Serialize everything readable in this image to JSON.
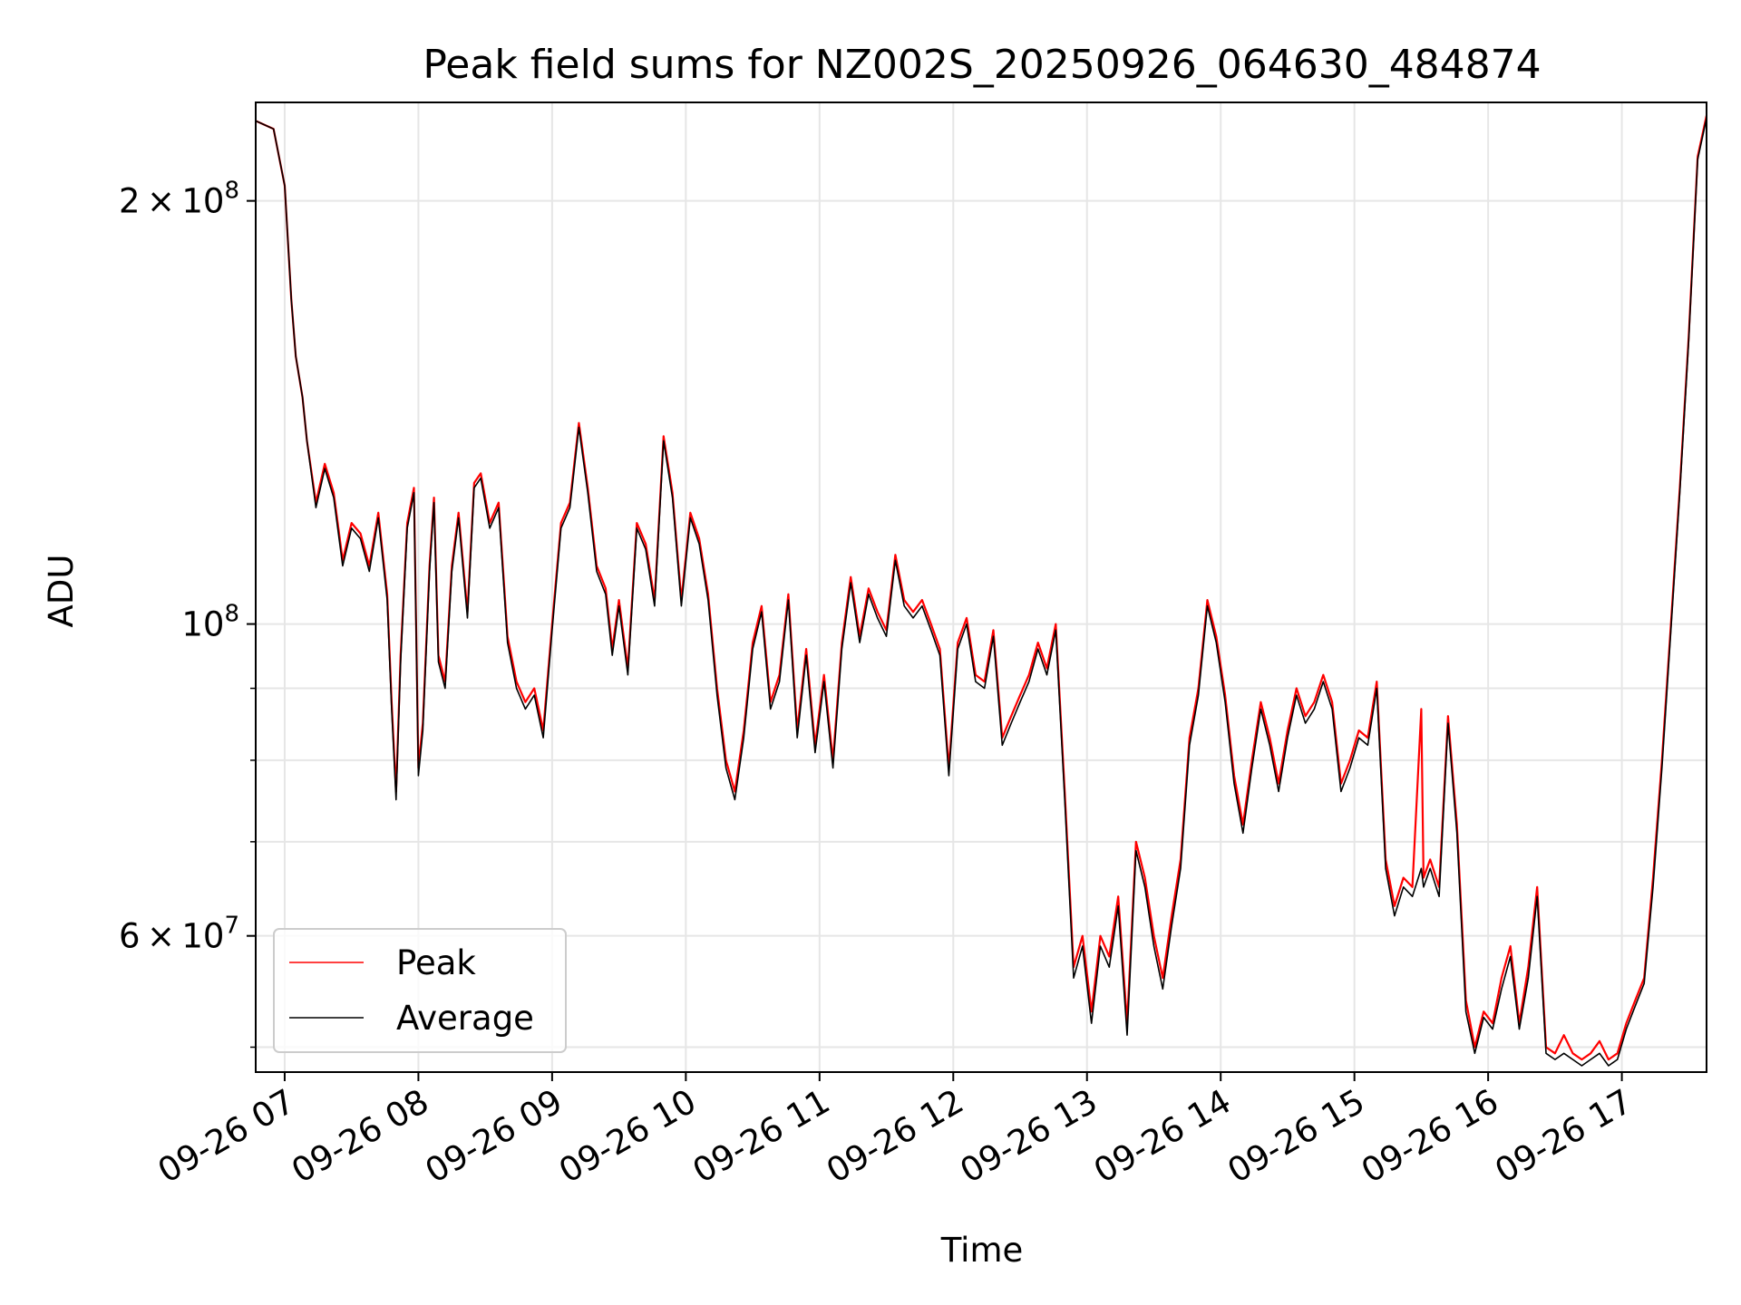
{
  "chart_data": {
    "type": "line",
    "title": "Peak field sums for NZ002S_20250926_064630_484874",
    "xlabel": "Time",
    "ylabel": "ADU",
    "yscale": "log",
    "grid": true,
    "legend_position": "lower-left",
    "xlim": [
      "2025-09-26 06:47",
      "2025-09-26 17:38"
    ],
    "ylim": [
      48000000,
      235000000
    ],
    "x_tick_labels": [
      "09-26 07",
      "09-26 08",
      "09-26 09",
      "09-26 10",
      "09-26 11",
      "09-26 12",
      "09-26 13",
      "09-26 14",
      "09-26 15",
      "09-26 16",
      "09-26 17"
    ],
    "x_ticks": [
      "2025-09-26 07:00",
      "2025-09-26 08:00",
      "2025-09-26 09:00",
      "2025-09-26 10:00",
      "2025-09-26 11:00",
      "2025-09-26 12:00",
      "2025-09-26 13:00",
      "2025-09-26 14:00",
      "2025-09-26 15:00",
      "2025-09-26 16:00",
      "2025-09-26 17:00"
    ],
    "y_major_ticks": [
      {
        "value": 100000000,
        "mantissa": "",
        "exponent": "8"
      },
      {
        "value": 200000000,
        "mantissa": "2",
        "exponent": "8"
      },
      {
        "value": 60000000,
        "mantissa": "6",
        "exponent": "7"
      }
    ],
    "y_minor_gridlines": [
      50000000,
      70000000,
      80000000,
      90000000
    ],
    "colors": {
      "peak": "#ff0000",
      "average": "#000000"
    },
    "series": [
      {
        "name": "Peak",
        "color": "#ff0000",
        "x": [
          "2025-09-26 06:47",
          "2025-09-26 06:55",
          "2025-09-26 07:00",
          "2025-09-26 07:03",
          "2025-09-26 07:05",
          "2025-09-26 07:08",
          "2025-09-26 07:10",
          "2025-09-26 07:14",
          "2025-09-26 07:18",
          "2025-09-26 07:22",
          "2025-09-26 07:26",
          "2025-09-26 07:30",
          "2025-09-26 07:34",
          "2025-09-26 07:38",
          "2025-09-26 07:42",
          "2025-09-26 07:46",
          "2025-09-26 07:48",
          "2025-09-26 07:50",
          "2025-09-26 07:52",
          "2025-09-26 07:55",
          "2025-09-26 07:58",
          "2025-09-26 08:00",
          "2025-09-26 08:02",
          "2025-09-26 08:05",
          "2025-09-26 08:07",
          "2025-09-26 08:09",
          "2025-09-26 08:12",
          "2025-09-26 08:15",
          "2025-09-26 08:18",
          "2025-09-26 08:22",
          "2025-09-26 08:25",
          "2025-09-26 08:28",
          "2025-09-26 08:32",
          "2025-09-26 08:36",
          "2025-09-26 08:40",
          "2025-09-26 08:44",
          "2025-09-26 08:48",
          "2025-09-26 08:52",
          "2025-09-26 08:56",
          "2025-09-26 09:00",
          "2025-09-26 09:04",
          "2025-09-26 09:08",
          "2025-09-26 09:12",
          "2025-09-26 09:16",
          "2025-09-26 09:20",
          "2025-09-26 09:24",
          "2025-09-26 09:27",
          "2025-09-26 09:30",
          "2025-09-26 09:34",
          "2025-09-26 09:38",
          "2025-09-26 09:42",
          "2025-09-26 09:46",
          "2025-09-26 09:50",
          "2025-09-26 09:54",
          "2025-09-26 09:58",
          "2025-09-26 10:02",
          "2025-09-26 10:06",
          "2025-09-26 10:10",
          "2025-09-26 10:14",
          "2025-09-26 10:18",
          "2025-09-26 10:22",
          "2025-09-26 10:26",
          "2025-09-26 10:30",
          "2025-09-26 10:34",
          "2025-09-26 10:38",
          "2025-09-26 10:42",
          "2025-09-26 10:46",
          "2025-09-26 10:50",
          "2025-09-26 10:54",
          "2025-09-26 10:58",
          "2025-09-26 11:02",
          "2025-09-26 11:06",
          "2025-09-26 11:10",
          "2025-09-26 11:14",
          "2025-09-26 11:18",
          "2025-09-26 11:22",
          "2025-09-26 11:26",
          "2025-09-26 11:30",
          "2025-09-26 11:34",
          "2025-09-26 11:38",
          "2025-09-26 11:42",
          "2025-09-26 11:46",
          "2025-09-26 11:50",
          "2025-09-26 11:54",
          "2025-09-26 11:58",
          "2025-09-26 12:02",
          "2025-09-26 12:06",
          "2025-09-26 12:10",
          "2025-09-26 12:14",
          "2025-09-26 12:18",
          "2025-09-26 12:22",
          "2025-09-26 12:26",
          "2025-09-26 12:30",
          "2025-09-26 12:34",
          "2025-09-26 12:38",
          "2025-09-26 12:42",
          "2025-09-26 12:46",
          "2025-09-26 12:50",
          "2025-09-26 12:54",
          "2025-09-26 12:58",
          "2025-09-26 13:02",
          "2025-09-26 13:06",
          "2025-09-26 13:10",
          "2025-09-26 13:14",
          "2025-09-26 13:18",
          "2025-09-26 13:22",
          "2025-09-26 13:26",
          "2025-09-26 13:30",
          "2025-09-26 13:34",
          "2025-09-26 13:38",
          "2025-09-26 13:42",
          "2025-09-26 13:46",
          "2025-09-26 13:50",
          "2025-09-26 13:54",
          "2025-09-26 13:58",
          "2025-09-26 14:02",
          "2025-09-26 14:06",
          "2025-09-26 14:10",
          "2025-09-26 14:14",
          "2025-09-26 14:18",
          "2025-09-26 14:22",
          "2025-09-26 14:26",
          "2025-09-26 14:30",
          "2025-09-26 14:34",
          "2025-09-26 14:38",
          "2025-09-26 14:42",
          "2025-09-26 14:46",
          "2025-09-26 14:50",
          "2025-09-26 14:54",
          "2025-09-26 14:58",
          "2025-09-26 15:02",
          "2025-09-26 15:06",
          "2025-09-26 15:10",
          "2025-09-26 15:14",
          "2025-09-26 15:18",
          "2025-09-26 15:22",
          "2025-09-26 15:26",
          "2025-09-26 15:30",
          "2025-09-26 15:31",
          "2025-09-26 15:34",
          "2025-09-26 15:38",
          "2025-09-26 15:42",
          "2025-09-26 15:46",
          "2025-09-26 15:50",
          "2025-09-26 15:54",
          "2025-09-26 15:58",
          "2025-09-26 16:02",
          "2025-09-26 16:06",
          "2025-09-26 16:10",
          "2025-09-26 16:14",
          "2025-09-26 16:18",
          "2025-09-26 16:22",
          "2025-09-26 16:26",
          "2025-09-26 16:30",
          "2025-09-26 16:34",
          "2025-09-26 16:38",
          "2025-09-26 16:42",
          "2025-09-26 16:46",
          "2025-09-26 16:50",
          "2025-09-26 16:54",
          "2025-09-26 16:58",
          "2025-09-26 17:02",
          "2025-09-26 17:06",
          "2025-09-26 17:10",
          "2025-09-26 17:14",
          "2025-09-26 17:18",
          "2025-09-26 17:22",
          "2025-09-26 17:26",
          "2025-09-26 17:30",
          "2025-09-26 17:34",
          "2025-09-26 17:38"
        ],
        "values": [
          228000000,
          225000000,
          205000000,
          170000000,
          155000000,
          145000000,
          135000000,
          122000000,
          130000000,
          124000000,
          111000000,
          118000000,
          116000000,
          110000000,
          120000000,
          105000000,
          88000000,
          76000000,
          95000000,
          118000000,
          125000000,
          79000000,
          85000000,
          110000000,
          123000000,
          95000000,
          91000000,
          110000000,
          120000000,
          102000000,
          126000000,
          128000000,
          118000000,
          122000000,
          98000000,
          91000000,
          88000000,
          90000000,
          84000000,
          100000000,
          118000000,
          122000000,
          139000000,
          125000000,
          110000000,
          106000000,
          96000000,
          104000000,
          93000000,
          118000000,
          114000000,
          104000000,
          136000000,
          124000000,
          104000000,
          120000000,
          115000000,
          105000000,
          90000000,
          80000000,
          76000000,
          84000000,
          97000000,
          103000000,
          88000000,
          92000000,
          105000000,
          84000000,
          96000000,
          82000000,
          92000000,
          80000000,
          97000000,
          108000000,
          98000000,
          106000000,
          102000000,
          99000000,
          112000000,
          104000000,
          102000000,
          104000000,
          100000000,
          96000000,
          79000000,
          97000000,
          101000000,
          92000000,
          91000000,
          99000000,
          83000000,
          86000000,
          89000000,
          92000000,
          97000000,
          93000000,
          100000000,
          76000000,
          57000000,
          60000000,
          53000000,
          60000000,
          58000000,
          64000000,
          52000000,
          70000000,
          66000000,
          60000000,
          56000000,
          62000000,
          68000000,
          83000000,
          90000000,
          104000000,
          98000000,
          89000000,
          78000000,
          72000000,
          80000000,
          88000000,
          83000000,
          77000000,
          84000000,
          90000000,
          86000000,
          88000000,
          92000000,
          88000000,
          77000000,
          80000000,
          84000000,
          83000000,
          91000000,
          68000000,
          63000000,
          66000000,
          65000000,
          87000000,
          66000000,
          68000000,
          65000000,
          86000000,
          72000000,
          54000000,
          50000000,
          53000000,
          52000000,
          56000000,
          59000000,
          52000000,
          57000000,
          65000000,
          50000000,
          49500000,
          51000000,
          49500000,
          49000000,
          49500000,
          50500000,
          49000000,
          49500000,
          52000000,
          54000000,
          56000000,
          66000000,
          80000000,
          100000000,
          125000000,
          160000000,
          215000000,
          230000000
        ]
      },
      {
        "name": "Average",
        "color": "#000000",
        "x": [
          "2025-09-26 06:47",
          "2025-09-26 06:55",
          "2025-09-26 07:00",
          "2025-09-26 07:03",
          "2025-09-26 07:05",
          "2025-09-26 07:08",
          "2025-09-26 07:10",
          "2025-09-26 07:14",
          "2025-09-26 07:18",
          "2025-09-26 07:22",
          "2025-09-26 07:26",
          "2025-09-26 07:30",
          "2025-09-26 07:34",
          "2025-09-26 07:38",
          "2025-09-26 07:42",
          "2025-09-26 07:46",
          "2025-09-26 07:48",
          "2025-09-26 07:50",
          "2025-09-26 07:52",
          "2025-09-26 07:55",
          "2025-09-26 07:58",
          "2025-09-26 08:00",
          "2025-09-26 08:02",
          "2025-09-26 08:05",
          "2025-09-26 08:07",
          "2025-09-26 08:09",
          "2025-09-26 08:12",
          "2025-09-26 08:15",
          "2025-09-26 08:18",
          "2025-09-26 08:22",
          "2025-09-26 08:25",
          "2025-09-26 08:28",
          "2025-09-26 08:32",
          "2025-09-26 08:36",
          "2025-09-26 08:40",
          "2025-09-26 08:44",
          "2025-09-26 08:48",
          "2025-09-26 08:52",
          "2025-09-26 08:56",
          "2025-09-26 09:00",
          "2025-09-26 09:04",
          "2025-09-26 09:08",
          "2025-09-26 09:12",
          "2025-09-26 09:16",
          "2025-09-26 09:20",
          "2025-09-26 09:24",
          "2025-09-26 09:27",
          "2025-09-26 09:30",
          "2025-09-26 09:34",
          "2025-09-26 09:38",
          "2025-09-26 09:42",
          "2025-09-26 09:46",
          "2025-09-26 09:50",
          "2025-09-26 09:54",
          "2025-09-26 09:58",
          "2025-09-26 10:02",
          "2025-09-26 10:06",
          "2025-09-26 10:10",
          "2025-09-26 10:14",
          "2025-09-26 10:18",
          "2025-09-26 10:22",
          "2025-09-26 10:26",
          "2025-09-26 10:30",
          "2025-09-26 10:34",
          "2025-09-26 10:38",
          "2025-09-26 10:42",
          "2025-09-26 10:46",
          "2025-09-26 10:50",
          "2025-09-26 10:54",
          "2025-09-26 10:58",
          "2025-09-26 11:02",
          "2025-09-26 11:06",
          "2025-09-26 11:10",
          "2025-09-26 11:14",
          "2025-09-26 11:18",
          "2025-09-26 11:22",
          "2025-09-26 11:26",
          "2025-09-26 11:30",
          "2025-09-26 11:34",
          "2025-09-26 11:38",
          "2025-09-26 11:42",
          "2025-09-26 11:46",
          "2025-09-26 11:50",
          "2025-09-26 11:54",
          "2025-09-26 11:58",
          "2025-09-26 12:02",
          "2025-09-26 12:06",
          "2025-09-26 12:10",
          "2025-09-26 12:14",
          "2025-09-26 12:18",
          "2025-09-26 12:22",
          "2025-09-26 12:26",
          "2025-09-26 12:30",
          "2025-09-26 12:34",
          "2025-09-26 12:38",
          "2025-09-26 12:42",
          "2025-09-26 12:46",
          "2025-09-26 12:50",
          "2025-09-26 12:54",
          "2025-09-26 12:58",
          "2025-09-26 13:02",
          "2025-09-26 13:06",
          "2025-09-26 13:10",
          "2025-09-26 13:14",
          "2025-09-26 13:18",
          "2025-09-26 13:22",
          "2025-09-26 13:26",
          "2025-09-26 13:30",
          "2025-09-26 13:34",
          "2025-09-26 13:38",
          "2025-09-26 13:42",
          "2025-09-26 13:46",
          "2025-09-26 13:50",
          "2025-09-26 13:54",
          "2025-09-26 13:58",
          "2025-09-26 14:02",
          "2025-09-26 14:06",
          "2025-09-26 14:10",
          "2025-09-26 14:14",
          "2025-09-26 14:18",
          "2025-09-26 14:22",
          "2025-09-26 14:26",
          "2025-09-26 14:30",
          "2025-09-26 14:34",
          "2025-09-26 14:38",
          "2025-09-26 14:42",
          "2025-09-26 14:46",
          "2025-09-26 14:50",
          "2025-09-26 14:54",
          "2025-09-26 14:58",
          "2025-09-26 15:02",
          "2025-09-26 15:06",
          "2025-09-26 15:10",
          "2025-09-26 15:14",
          "2025-09-26 15:18",
          "2025-09-26 15:22",
          "2025-09-26 15:26",
          "2025-09-26 15:30",
          "2025-09-26 15:31",
          "2025-09-26 15:34",
          "2025-09-26 15:38",
          "2025-09-26 15:42",
          "2025-09-26 15:46",
          "2025-09-26 15:50",
          "2025-09-26 15:54",
          "2025-09-26 15:58",
          "2025-09-26 16:02",
          "2025-09-26 16:06",
          "2025-09-26 16:10",
          "2025-09-26 16:14",
          "2025-09-26 16:18",
          "2025-09-26 16:22",
          "2025-09-26 16:26",
          "2025-09-26 16:30",
          "2025-09-26 16:34",
          "2025-09-26 16:38",
          "2025-09-26 16:42",
          "2025-09-26 16:46",
          "2025-09-26 16:50",
          "2025-09-26 16:54",
          "2025-09-26 16:58",
          "2025-09-26 17:02",
          "2025-09-26 17:06",
          "2025-09-26 17:10",
          "2025-09-26 17:14",
          "2025-09-26 17:18",
          "2025-09-26 17:22",
          "2025-09-26 17:26",
          "2025-09-26 17:30",
          "2025-09-26 17:34",
          "2025-09-26 17:38"
        ],
        "values": [
          228000000,
          225000000,
          205000000,
          170000000,
          155000000,
          145000000,
          135000000,
          121000000,
          129000000,
          123000000,
          110000000,
          117000000,
          115000000,
          109000000,
          119000000,
          104000000,
          87000000,
          75000000,
          94000000,
          117000000,
          124000000,
          78000000,
          84000000,
          109000000,
          122000000,
          94000000,
          90000000,
          109000000,
          119000000,
          101000000,
          125000000,
          127000000,
          117000000,
          121000000,
          97000000,
          90000000,
          87000000,
          89000000,
          83000000,
          99000000,
          117000000,
          121000000,
          138000000,
          124000000,
          109000000,
          105000000,
          95000000,
          103000000,
          92000000,
          117000000,
          113000000,
          103000000,
          135000000,
          123000000,
          103000000,
          119000000,
          114000000,
          104000000,
          89000000,
          79000000,
          75000000,
          83000000,
          96000000,
          102000000,
          87000000,
          91000000,
          104000000,
          83000000,
          95000000,
          81000000,
          91000000,
          79000000,
          96000000,
          107000000,
          97000000,
          105000000,
          101000000,
          98000000,
          111000000,
          103000000,
          101000000,
          103000000,
          99000000,
          95000000,
          78000000,
          96000000,
          100000000,
          91000000,
          90000000,
          98000000,
          82000000,
          85000000,
          88000000,
          91000000,
          96000000,
          92000000,
          99000000,
          75000000,
          56000000,
          59000000,
          52000000,
          59000000,
          57000000,
          63000000,
          51000000,
          69000000,
          65000000,
          59000000,
          55000000,
          61000000,
          67000000,
          82000000,
          89000000,
          103000000,
          97000000,
          88000000,
          77000000,
          71000000,
          79000000,
          87000000,
          82000000,
          76000000,
          83000000,
          89000000,
          85000000,
          87000000,
          91000000,
          87000000,
          76000000,
          79000000,
          83000000,
          82000000,
          90000000,
          67000000,
          62000000,
          65000000,
          64000000,
          67000000,
          65000000,
          67000000,
          64000000,
          85000000,
          71000000,
          53000000,
          49500000,
          52500000,
          51500000,
          55000000,
          58000000,
          51500000,
          56000000,
          64000000,
          49500000,
          49000000,
          49500000,
          49000000,
          48500000,
          49000000,
          49500000,
          48500000,
          49000000,
          51500000,
          53500000,
          55500000,
          65000000,
          79000000,
          99000000,
          124000000,
          159000000,
          214000000,
          229000000
        ]
      }
    ]
  }
}
